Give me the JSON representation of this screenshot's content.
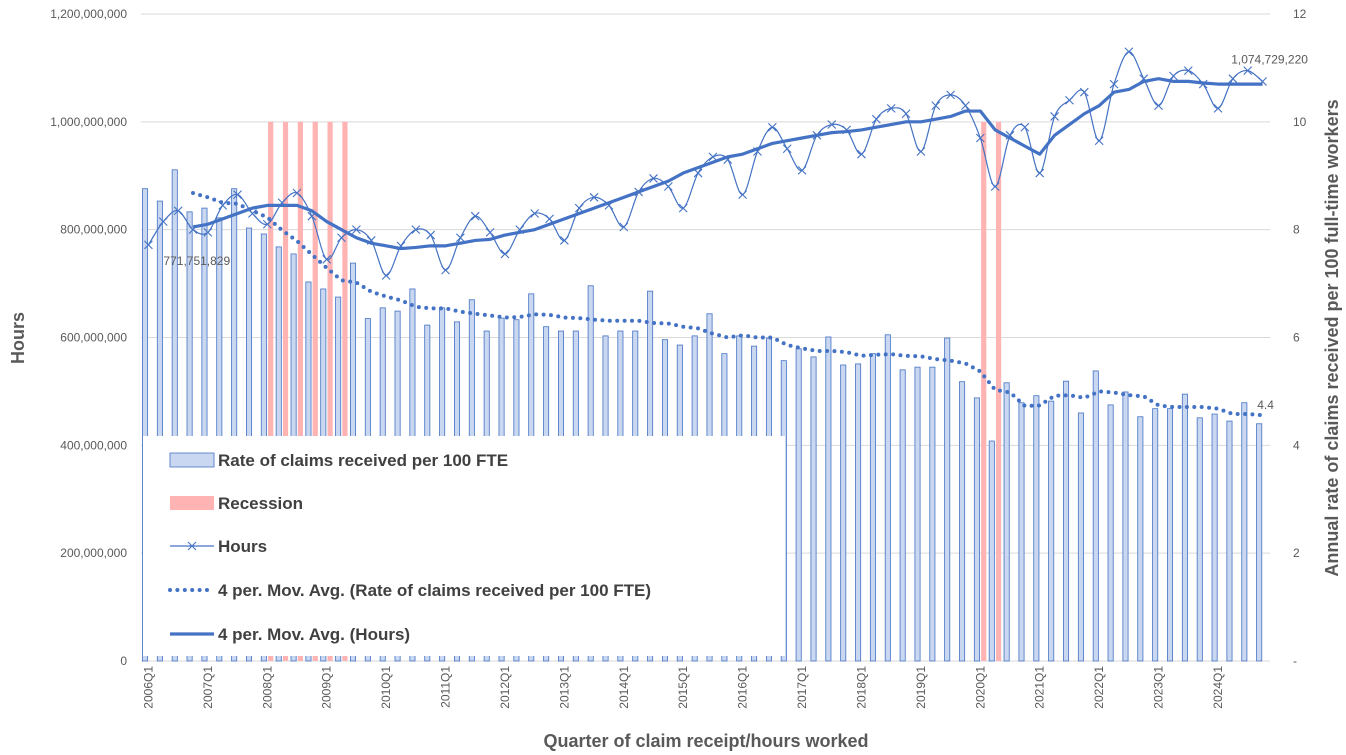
{
  "chart_data": {
    "type": "combo",
    "x_label": "Quarter of claim receipt/hours worked",
    "y_label": "Hours",
    "y2_label": "Annual rate of claims received per 100 full-time workers",
    "categories": [
      "2006Q1",
      null,
      null,
      null,
      "2007Q1",
      null,
      null,
      null,
      "2008Q1",
      null,
      null,
      null,
      "2009Q1",
      null,
      null,
      null,
      "2010Q1",
      null,
      null,
      null,
      "2011Q1",
      null,
      null,
      null,
      "2012Q1",
      null,
      null,
      null,
      "2013Q1",
      null,
      null,
      null,
      "2014Q1",
      null,
      null,
      null,
      "2015Q1",
      null,
      null,
      null,
      "2016Q1",
      null,
      null,
      null,
      "2017Q1",
      null,
      null,
      null,
      "2018Q1",
      null,
      null,
      null,
      "2019Q1",
      null,
      null,
      null,
      "2020Q1",
      null,
      null,
      null,
      "2021Q1",
      null,
      null,
      null,
      "2022Q1",
      null,
      null,
      null,
      "2023Q1",
      null,
      null,
      null,
      "2024Q1",
      null,
      null,
      null
    ],
    "ylim": [
      0,
      1200000000
    ],
    "yticks": [
      0,
      {
        "value": 200000000,
        "label": "200,000,000"
      },
      {
        "value": 400000000,
        "label": "400,000,000"
      },
      {
        "value": 600000000,
        "label": "600,000,000"
      },
      {
        "value": 800000000,
        "label": "800,000,000"
      },
      {
        "value": 1000000000,
        "label": "1,000,000,000"
      },
      {
        "value": 1200000000,
        "label": "1,200,000,000"
      }
    ],
    "y2lim": [
      0,
      12
    ],
    "y2ticks": [
      {
        "value": 0,
        "label": "-"
      },
      2,
      4,
      6,
      8,
      10,
      12
    ],
    "grid": true,
    "legend": "bottom-left",
    "series": [
      {
        "name": "Rate of claims received per 100 FTE",
        "type": "bar",
        "axis": "y2",
        "color": "#4472c4",
        "fill": "#c9d7f0",
        "values": [
          8.76,
          8.53,
          9.11,
          8.33,
          8.4,
          8.22,
          8.76,
          8.03,
          7.92,
          7.68,
          7.55,
          7.03,
          6.9,
          6.75,
          7.38,
          6.35,
          6.55,
          6.49,
          6.9,
          6.23,
          6.55,
          6.29,
          6.7,
          6.12,
          6.36,
          6.33,
          6.81,
          6.2,
          6.12,
          6.12,
          6.96,
          6.03,
          6.12,
          6.12,
          6.86,
          5.96,
          5.86,
          6.03,
          6.44,
          5.7,
          6.03,
          5.84,
          5.99,
          5.57,
          5.79,
          5.64,
          6.01,
          5.49,
          5.51,
          5.7,
          6.05,
          5.4,
          5.45,
          5.45,
          5.99,
          5.18,
          4.88,
          4.08,
          5.16,
          4.79,
          4.92,
          4.82,
          5.19,
          4.6,
          5.38,
          4.75,
          4.99,
          4.53,
          4.68,
          4.68,
          4.95,
          4.51,
          4.58,
          4.45,
          4.79,
          4.4
        ]
      },
      {
        "name": "Recession",
        "type": "bar",
        "axis": "y2",
        "color": "#ffb3b3",
        "fill": "#ffb3b3",
        "values": [
          null,
          null,
          null,
          null,
          null,
          null,
          null,
          null,
          10,
          10,
          10,
          10,
          10,
          10,
          null,
          null,
          null,
          null,
          null,
          null,
          null,
          null,
          null,
          null,
          null,
          null,
          null,
          null,
          null,
          null,
          null,
          null,
          null,
          null,
          null,
          null,
          null,
          null,
          null,
          null,
          null,
          null,
          null,
          null,
          null,
          null,
          null,
          null,
          null,
          null,
          null,
          null,
          null,
          null,
          null,
          null,
          10,
          10,
          null,
          null,
          null,
          null,
          null,
          null,
          null,
          null,
          null,
          null,
          null,
          null,
          null,
          null,
          null,
          null,
          null,
          null
        ]
      },
      {
        "name": "Hours",
        "type": "line",
        "marker": "x",
        "style": "solid",
        "width": 1.2,
        "color": "#4472c4",
        "values": [
          771751829,
          815000000.0,
          835000000.0,
          800000000.0,
          795000000.0,
          845000000.0,
          865000000.0,
          830000000.0,
          810000000.0,
          850000000.0,
          868000000.0,
          825000000.0,
          745000000.0,
          785000000.0,
          800000000.0,
          780000000.0,
          715000000.0,
          770000000.0,
          800000000.0,
          790000000.0,
          725000000.0,
          785000000.0,
          825000000.0,
          795000000.0,
          755000000.0,
          800000000.0,
          830000000.0,
          820000000.0,
          780000000.0,
          840000000.0,
          860000000.0,
          845000000.0,
          805000000.0,
          870000000.0,
          895000000.0,
          880000000.0,
          840000000.0,
          905000000.0,
          935000000.0,
          930000000.0,
          865000000.0,
          945000000.0,
          990000000.0,
          950000000.0,
          910000000.0,
          975000000.0,
          995000000.0,
          985000000.0,
          940000000.0,
          1005000000.0,
          1025000000.0,
          1015000000.0,
          945000000.0,
          1030000000.0,
          1050000000.0,
          1030000000.0,
          970000000.0,
          880000000.0,
          975000000.0,
          990000000.0,
          905000000.0,
          1010000000.0,
          1040000000.0,
          1055000000.0,
          965000000.0,
          1070000000.0,
          1130000000.0,
          1080000000.0,
          1030000000.0,
          1085000000.0,
          1095000000.0,
          1070000000.0,
          1025000000.0,
          1080000000.0,
          1095000000.0,
          1074729220
        ],
        "value_labels": [
          "771,751,829",
          null,
          null,
          null,
          null,
          null,
          null,
          null,
          null,
          null,
          null,
          null,
          null,
          null,
          null,
          null,
          null,
          null,
          null,
          null,
          null,
          null,
          null,
          null,
          null,
          null,
          null,
          null,
          null,
          null,
          null,
          null,
          null,
          null,
          null,
          null,
          null,
          null,
          null,
          null,
          null,
          null,
          null,
          null,
          null,
          null,
          null,
          null,
          null,
          null,
          null,
          null,
          null,
          null,
          null,
          null,
          null,
          null,
          null,
          null,
          null,
          null,
          null,
          null,
          null,
          null,
          null,
          null,
          null,
          null,
          null,
          null,
          null,
          null,
          null,
          "1,074,729,220"
        ]
      },
      {
        "name": "4 per. Mov. Avg. (Rate of claims received per 100 FTE)",
        "type": "line",
        "axis": "y2",
        "style": "dotted",
        "width": 4,
        "color": "#4472c4",
        "values": [
          null,
          null,
          null,
          8.68,
          8.6,
          8.5,
          8.48,
          8.35,
          8.23,
          7.99,
          7.79,
          7.54,
          7.29,
          7.06,
          7.02,
          6.85,
          6.76,
          6.69,
          6.57,
          6.54,
          6.54,
          6.48,
          6.44,
          6.41,
          6.37,
          6.38,
          6.43,
          6.42,
          6.37,
          6.36,
          6.33,
          6.31,
          6.31,
          6.31,
          6.27,
          6.26,
          6.2,
          6.17,
          6.07,
          6.0,
          6.04,
          6.0,
          6.0,
          5.86,
          5.8,
          5.75,
          5.75,
          5.73,
          5.66,
          5.68,
          5.69,
          5.66,
          5.65,
          5.6,
          5.57,
          5.52,
          5.37,
          5.03,
          4.98,
          4.73,
          4.74,
          4.92,
          4.93,
          4.88,
          5.0,
          4.98,
          4.93,
          4.91,
          4.74,
          4.71,
          4.71,
          4.71,
          4.68,
          4.58,
          4.58,
          4.56
        ]
      },
      {
        "name": "4 per. Mov. Avg. (Hours)",
        "type": "line",
        "style": "solid",
        "width": 3.2,
        "color": "#4472c4",
        "values": [
          null,
          null,
          null,
          805000000.0,
          810000000.0,
          820000000.0,
          830000000.0,
          840000000.0,
          845000000.0,
          845000000.0,
          845000000.0,
          835000000.0,
          815000000.0,
          800000000.0,
          785000000.0,
          775000000.0,
          770000000.0,
          765000000.0,
          767000000.0,
          770000000.0,
          770000000.0,
          775000000.0,
          780000000.0,
          782000000.0,
          790000000.0,
          795000000.0,
          800000000.0,
          810000000.0,
          820000000.0,
          830000000.0,
          840000000.0,
          850000000.0,
          860000000.0,
          870000000.0,
          880000000.0,
          890000000.0,
          905000000.0,
          915000000.0,
          925000000.0,
          935000000.0,
          940000000.0,
          950000000.0,
          960000000.0,
          965000000.0,
          970000000.0,
          975000000.0,
          980000000.0,
          982000000.0,
          985000000.0,
          990000000.0,
          995000000.0,
          1000000000.0,
          1000000000.0,
          1005000000.0,
          1010000000.0,
          1020000000.0,
          1020000000.0,
          985000000.0,
          970000000.0,
          955000000.0,
          940000000.0,
          975000000.0,
          995000000.0,
          1015000000.0,
          1030000000.0,
          1055000000.0,
          1060000000.0,
          1075000000.0,
          1080000000.0,
          1075000000.0,
          1075000000.0,
          1072000000.0,
          1070000000.0,
          1070000000.0,
          1070000000.0,
          1070000000.0
        ]
      }
    ]
  }
}
